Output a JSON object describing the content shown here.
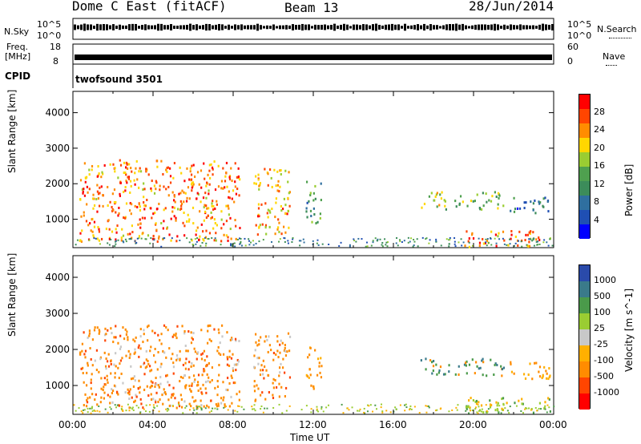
{
  "header": {
    "title": "Dome C East (fitACF)",
    "beam": "Beam 13",
    "date": "28/Jun/2014"
  },
  "noise_panel": {
    "left_label": "N.Sky",
    "left_top": "10^5",
    "left_bottom": "10^0",
    "right_top": "10^5",
    "right_bottom": "10^0",
    "right_label": "N.Search"
  },
  "freq_panel": {
    "left_label_1": "Freq.",
    "left_label_2": "[MHz]",
    "left_top": "18",
    "left_bottom": "8",
    "right_top": "60",
    "right_bottom": "0",
    "right_label": "Nave"
  },
  "cpid": {
    "label": "CPID",
    "value": "twofsound 3501"
  },
  "colors": {
    "power": [
      "#0000ff",
      "#1f4fb3",
      "#2f6f9f",
      "#3c8c5a",
      "#4fa04f",
      "#9acd32",
      "#ffd700",
      "#ff8c00",
      "#ff4500",
      "#ff0000"
    ],
    "velocity": [
      "#ff0000",
      "#ff4500",
      "#ff8c00",
      "#ffb000",
      "#c8c8c8",
      "#9acd32",
      "#4a9a4a",
      "#3a7a8a",
      "#2a4aaa"
    ]
  },
  "chart_data": [
    {
      "type": "heatmap",
      "name_hint": "power",
      "ylabel": "Slant Range [km]",
      "y_ticks": [
        "1000",
        "2000",
        "3000",
        "4000"
      ],
      "ylim": [
        200,
        4600
      ],
      "colorbar_label": "Power [dB]",
      "colorbar_ticks": [
        "4",
        "8",
        "12",
        "16",
        "20",
        "24",
        "28"
      ],
      "colorbar_range": [
        0,
        32
      ],
      "x_ticks": [
        "00:00",
        "04:00",
        "08:00",
        "12:00",
        "16:00",
        "20:00",
        "00:00"
      ],
      "xlim_hours": [
        0,
        24
      ],
      "regions": [
        {
          "x0": 0.3,
          "x1": 8.3,
          "r0": 400,
          "r1": 2700,
          "level": 26
        },
        {
          "x0": 9.0,
          "x1": 10.8,
          "r0": 600,
          "r1": 2500,
          "level": 24
        },
        {
          "x0": 11.6,
          "x1": 12.4,
          "r0": 900,
          "r1": 2100,
          "level": 12
        },
        {
          "x0": 17.3,
          "x1": 18.8,
          "r0": 1300,
          "r1": 1800,
          "level": 18
        },
        {
          "x0": 19.0,
          "x1": 21.5,
          "r0": 1300,
          "r1": 1800,
          "level": 16
        },
        {
          "x0": 21.8,
          "x1": 23.9,
          "r0": 1200,
          "r1": 1700,
          "level": 8
        },
        {
          "x0": 19.5,
          "x1": 23.8,
          "r0": 250,
          "r1": 700,
          "level": 26
        }
      ]
    },
    {
      "type": "heatmap",
      "name_hint": "velocity",
      "ylabel": "Slant Range [km]",
      "y_ticks": [
        "1000",
        "2000",
        "3000",
        "4000"
      ],
      "ylim": [
        200,
        4600
      ],
      "colorbar_label": "Velocity [m s^-1]",
      "colorbar_ticks": [
        "1000",
        "500",
        "100",
        "25",
        "-25",
        "-100",
        "-500",
        "-1000"
      ],
      "x_ticks": [
        "00:00",
        "04:00",
        "08:00",
        "12:00",
        "16:00",
        "20:00",
        "00:00"
      ],
      "xlabel": "Time UT",
      "xlim_hours": [
        0,
        24
      ],
      "regions": [
        {
          "x0": 0.3,
          "x1": 8.3,
          "r0": 400,
          "r1": 2700,
          "velocity": -300
        },
        {
          "x0": 9.0,
          "x1": 10.8,
          "r0": 600,
          "r1": 2500,
          "velocity": -300
        },
        {
          "x0": 11.6,
          "x1": 12.4,
          "r0": 900,
          "r1": 2100,
          "velocity": -150
        },
        {
          "x0": 17.3,
          "x1": 18.8,
          "r0": 1300,
          "r1": 1800,
          "velocity": 200
        },
        {
          "x0": 19.0,
          "x1": 21.5,
          "r0": 1300,
          "r1": 1800,
          "velocity": 200
        },
        {
          "x0": 21.8,
          "x1": 23.9,
          "r0": 1200,
          "r1": 1700,
          "velocity": -150
        },
        {
          "x0": 19.5,
          "x1": 23.8,
          "r0": 250,
          "r1": 700,
          "velocity": 50
        }
      ]
    }
  ]
}
